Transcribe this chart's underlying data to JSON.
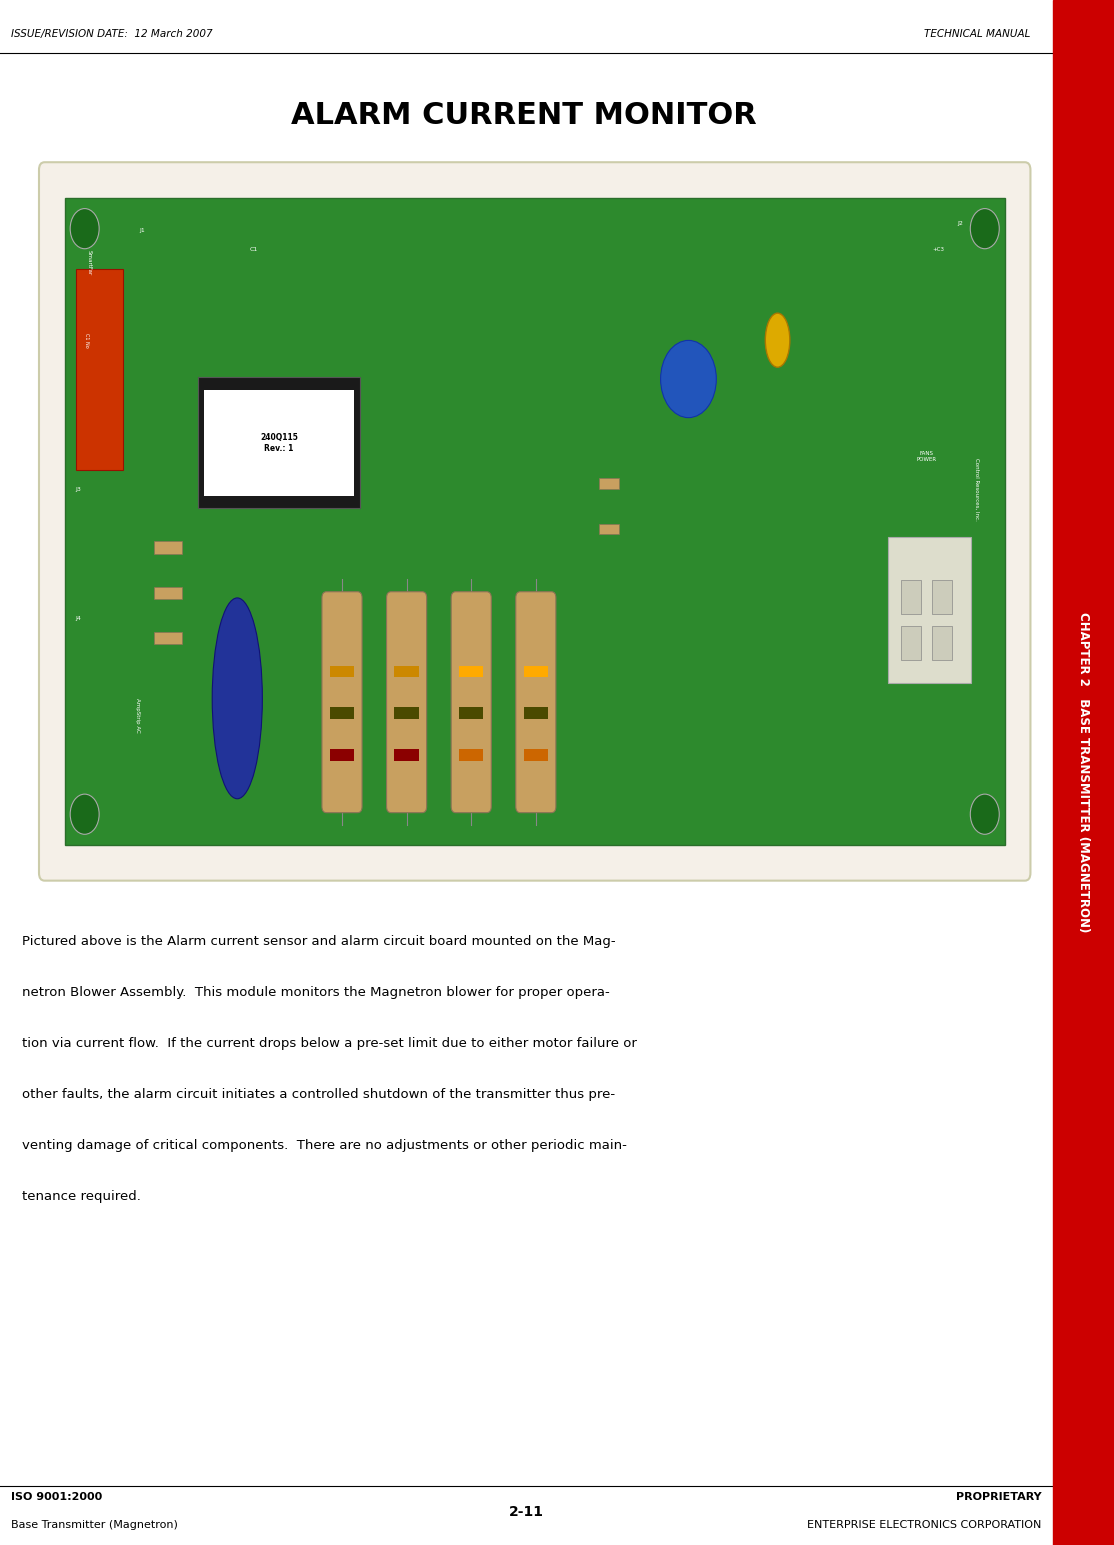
{
  "page_width": 11.14,
  "page_height": 15.45,
  "bg_color": "#ffffff",
  "red_color": "#cc0000",
  "header_left": "ISSUE/REVISION DATE:  12 March 2007",
  "header_right": "TECHNICAL MANUAL",
  "title": "ALARM CURRENT MONITOR",
  "title_fontsize": 22,
  "footer_left_line1": "ISO 9001:2000",
  "footer_left_line2": "Base Transmitter (Magnetron)",
  "footer_center": "2-11",
  "footer_right_line1": "PROPRIETARY",
  "footer_right_line2": "ENTERPRISE ELECTRONICS CORPORATION",
  "sidebar_text": "CHAPTER 2   BASE TRANSMITTER (MAGNETRON)",
  "sidebar_color": "#cc0000",
  "sidebar_text_color": "#ffffff",
  "body_lines": [
    "Pictured above is the Alarm current sensor and alarm circuit board mounted on the Mag-",
    "netron Blower Assembly.  This module monitors the Magnetron blower for proper opera-",
    "tion via current flow.  If the current drops below a pre-set limit due to either motor failure or",
    "other faults, the alarm circuit initiates a controlled shutdown of the transmitter thus pre-",
    "venting damage of critical components.  There are no adjustments or other periodic main-",
    "tenance required."
  ],
  "image_bg": "#f5f0e8",
  "board_color": "#2d8a2d",
  "board_edge": "#2a6e2a"
}
